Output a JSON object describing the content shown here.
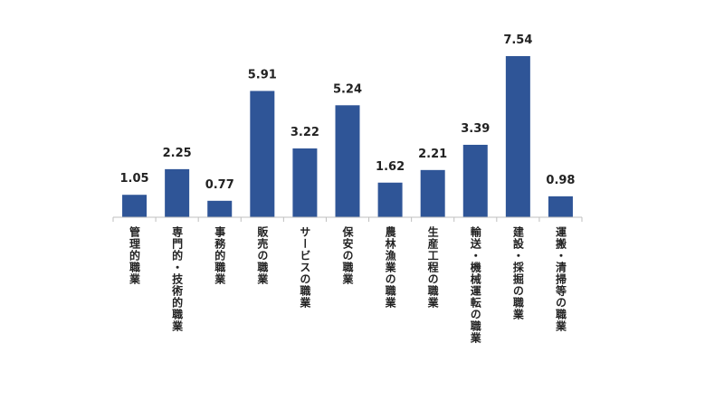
{
  "chart_data": {
    "type": "bar",
    "categories": [
      "管理的職業",
      "専門的・技術的職業",
      "事務的職業",
      "販売の職業",
      "サービスの職業",
      "保安の職業",
      "農林漁業の職業",
      "生産工程の職業",
      "輸送・機械運転の職業",
      "建設・採掘の職業",
      "運搬・清掃等の職業"
    ],
    "values": [
      1.05,
      2.25,
      0.77,
      5.91,
      3.22,
      5.24,
      1.62,
      2.21,
      3.39,
      7.54,
      0.98
    ],
    "color": "#2f5597"
  }
}
